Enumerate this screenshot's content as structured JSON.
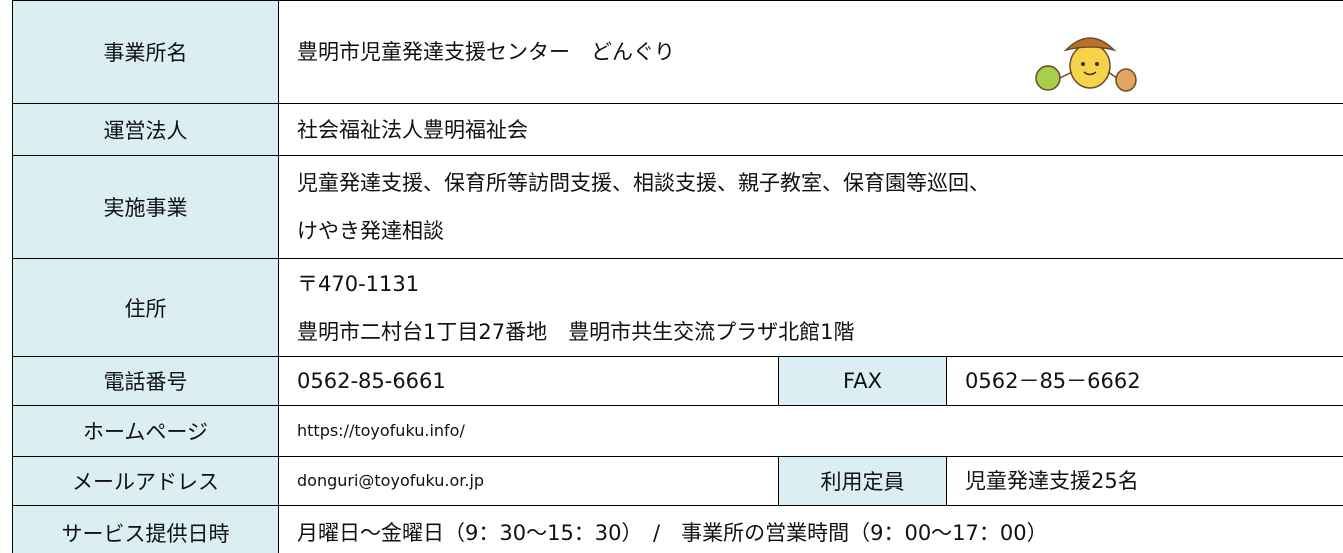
{
  "table": {
    "rows": [
      {
        "label": "事業所名",
        "lines": [
          "豊明市児童発達支援センター　どんぐり"
        ]
      },
      {
        "label": "運営法人",
        "lines": [
          "社会福祉法人豊明福祉会"
        ]
      },
      {
        "label": "実施事業",
        "lines": [
          "児童発達支援、保育所等訪問支援、相談支援、親子教室、保育園等巡回、",
          "けやき発達相談"
        ]
      },
      {
        "label": "住所",
        "lines": [
          "〒470-1131",
          "豊明市二村台1丁目27番地　豊明市共生交流プラザ北館1階"
        ]
      },
      {
        "label": "電話番号",
        "lines": [
          "0562-85-6661"
        ],
        "label2": "FAX",
        "value2": "0562－85－6662"
      },
      {
        "label": "ホームページ",
        "lines": [
          "https://toyofuku.info/"
        ]
      },
      {
        "label": "メールアドレス",
        "lines": [
          "donguri@toyofuku.or.jp"
        ],
        "label2": "利用定員",
        "value2": "児童発達支援25名"
      },
      {
        "label": "サービス提供日時",
        "lines": [
          "月曜日～金曜日（9：30～15：30）　/　事業所の営業時間（9：00～17：00）"
        ]
      }
    ]
  }
}
